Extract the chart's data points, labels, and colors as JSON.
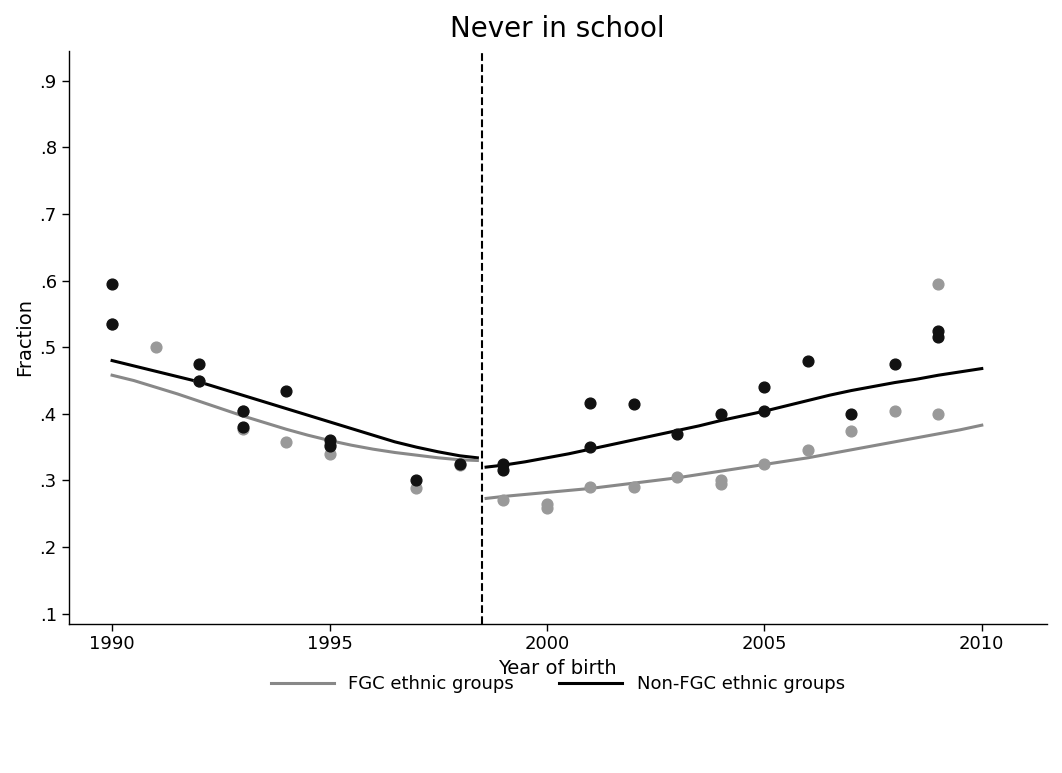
{
  "title": "Never in school",
  "xlabel": "Year of birth",
  "ylabel": "Fraction",
  "xlim": [
    1989,
    2011.5
  ],
  "ylim": [
    0.085,
    0.945
  ],
  "yticks": [
    0.1,
    0.2,
    0.3,
    0.4,
    0.5,
    0.6,
    0.7,
    0.8,
    0.9
  ],
  "ytick_labels": [
    ".1",
    ".2",
    ".3",
    ".4",
    ".5",
    ".6",
    ".7",
    ".8",
    ".9"
  ],
  "xticks": [
    1990,
    1995,
    2000,
    2005,
    2010
  ],
  "vline_x": 1998.5,
  "scatter_black_x": [
    1990,
    1990,
    1992,
    1992,
    1993,
    1993,
    1994,
    1995,
    1995,
    1997,
    1998,
    1999,
    1999,
    2001,
    2001,
    2002,
    2003,
    2004,
    2005,
    2005,
    2006,
    2007,
    2008,
    2009,
    2009
  ],
  "scatter_black_y": [
    0.595,
    0.535,
    0.475,
    0.45,
    0.405,
    0.38,
    0.435,
    0.36,
    0.352,
    0.3,
    0.325,
    0.325,
    0.315,
    0.35,
    0.416,
    0.415,
    0.37,
    0.4,
    0.44,
    0.405,
    0.48,
    0.4,
    0.475,
    0.525,
    0.515
  ],
  "scatter_gray_x": [
    1990,
    1991,
    1992,
    1993,
    1993,
    1994,
    1995,
    1995,
    1997,
    1998,
    1999,
    2000,
    2000,
    2001,
    2002,
    2003,
    2004,
    2004,
    2005,
    2006,
    2007,
    2008,
    2009,
    2009
  ],
  "scatter_gray_y": [
    0.535,
    0.5,
    0.45,
    0.405,
    0.378,
    0.358,
    0.355,
    0.34,
    0.288,
    0.323,
    0.27,
    0.265,
    0.258,
    0.29,
    0.29,
    0.305,
    0.295,
    0.3,
    0.325,
    0.345,
    0.375,
    0.405,
    0.595,
    0.4
  ],
  "curve_black_x_left": [
    1990.0,
    1990.5,
    1991.0,
    1991.5,
    1992.0,
    1992.5,
    1993.0,
    1993.5,
    1994.0,
    1994.5,
    1995.0,
    1995.5,
    1996.0,
    1996.5,
    1997.0,
    1997.5,
    1998.0,
    1998.4
  ],
  "curve_black_y_left": [
    0.48,
    0.472,
    0.464,
    0.456,
    0.448,
    0.438,
    0.428,
    0.418,
    0.408,
    0.398,
    0.388,
    0.378,
    0.368,
    0.358,
    0.35,
    0.343,
    0.337,
    0.334
  ],
  "curve_black_x_right": [
    1998.6,
    1999.0,
    1999.5,
    2000.0,
    2000.5,
    2001.0,
    2001.5,
    2002.0,
    2002.5,
    2003.0,
    2003.5,
    2004.0,
    2004.5,
    2005.0,
    2005.5,
    2006.0,
    2006.5,
    2007.0,
    2007.5,
    2008.0,
    2008.5,
    2009.0,
    2009.5,
    2010.0
  ],
  "curve_black_y_right": [
    0.32,
    0.323,
    0.328,
    0.334,
    0.34,
    0.347,
    0.354,
    0.361,
    0.368,
    0.375,
    0.382,
    0.39,
    0.397,
    0.404,
    0.412,
    0.42,
    0.428,
    0.435,
    0.441,
    0.447,
    0.452,
    0.458,
    0.463,
    0.468
  ],
  "curve_gray_x_left": [
    1990.0,
    1990.5,
    1991.0,
    1991.5,
    1992.0,
    1992.5,
    1993.0,
    1993.5,
    1994.0,
    1994.5,
    1995.0,
    1995.5,
    1996.0,
    1996.5,
    1997.0,
    1997.5,
    1998.0,
    1998.4
  ],
  "curve_gray_y_left": [
    0.458,
    0.45,
    0.44,
    0.43,
    0.419,
    0.408,
    0.397,
    0.387,
    0.377,
    0.368,
    0.36,
    0.353,
    0.347,
    0.342,
    0.338,
    0.334,
    0.331,
    0.33
  ],
  "curve_gray_x_right": [
    1998.6,
    1999.0,
    1999.5,
    2000.0,
    2000.5,
    2001.0,
    2001.5,
    2002.0,
    2002.5,
    2003.0,
    2003.5,
    2004.0,
    2004.5,
    2005.0,
    2005.5,
    2006.0,
    2006.5,
    2007.0,
    2007.5,
    2008.0,
    2008.5,
    2009.0,
    2009.5,
    2010.0
  ],
  "curve_gray_y_right": [
    0.273,
    0.276,
    0.279,
    0.282,
    0.285,
    0.288,
    0.292,
    0.296,
    0.3,
    0.304,
    0.309,
    0.314,
    0.319,
    0.324,
    0.329,
    0.334,
    0.34,
    0.346,
    0.352,
    0.358,
    0.364,
    0.37,
    0.376,
    0.383
  ],
  "legend_gray_label": "FGC ethnic groups",
  "legend_black_label": "Non-FGC ethnic groups",
  "scatter_black_color": "#111111",
  "scatter_gray_color": "#999999",
  "curve_black_color": "#000000",
  "curve_gray_color": "#888888",
  "title_fontsize": 20,
  "label_fontsize": 14,
  "tick_fontsize": 13,
  "legend_fontsize": 13
}
